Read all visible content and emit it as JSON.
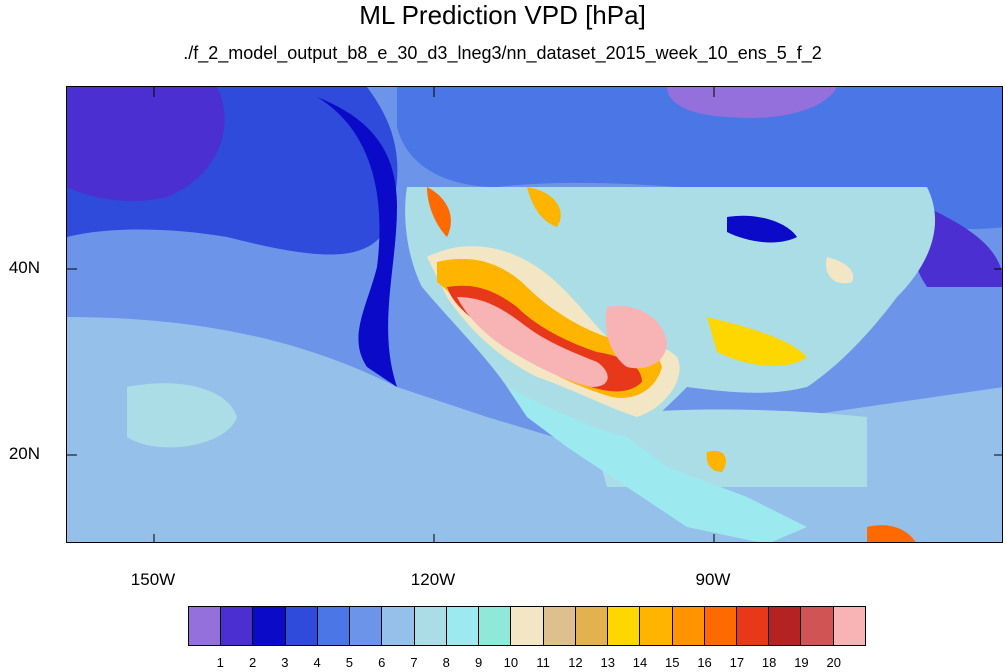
{
  "title": "ML Prediction VPD [hPa]",
  "subtitle": "./f_2_model_output_b8_e_30_d3_lneg3/nn_dataset_2015_week_10_ens_5_f_2",
  "axes": {
    "lon_labels": [
      "150W",
      "120W",
      "90W"
    ],
    "lat_labels": [
      "40N",
      "20N"
    ]
  },
  "colorbar": {
    "colors": [
      "#9370db",
      "#4b2fd0",
      "#0a0ac8",
      "#2e4bdc",
      "#4a76e6",
      "#6c95ea",
      "#94c0ea",
      "#aadde6",
      "#9ceaf0",
      "#8fe8d8",
      "#f3e6c4",
      "#dec08e",
      "#e3b250",
      "#ffd700",
      "#ffb400",
      "#ff9400",
      "#ff6a00",
      "#e8381a",
      "#b42222",
      "#d05454",
      "#f8b4b4"
    ],
    "labels": [
      "1",
      "2",
      "3",
      "4",
      "5",
      "6",
      "7",
      "8",
      "9",
      "10",
      "11",
      "12",
      "13",
      "14",
      "15",
      "16",
      "17",
      "18",
      "19",
      "20"
    ]
  }
}
